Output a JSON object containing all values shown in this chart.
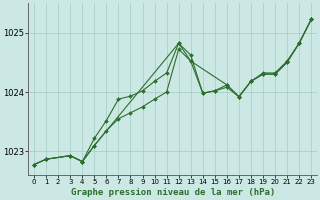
{
  "title": "Graphe pression niveau de la mer (hPa)",
  "bg_color": "#cce8e4",
  "grid_color": "#aad0cc",
  "line_color": "#2d6e2d",
  "x_ticks": [
    0,
    1,
    2,
    3,
    4,
    5,
    6,
    7,
    8,
    9,
    10,
    11,
    12,
    13,
    14,
    15,
    16,
    17,
    18,
    19,
    20,
    21,
    22,
    23
  ],
  "y_ticks": [
    1023,
    1024,
    1025
  ],
  "ylim": [
    1022.6,
    1025.5
  ],
  "xlim": [
    -0.5,
    23.5
  ],
  "series1_x": [
    0,
    1,
    3,
    4,
    5,
    6,
    7,
    8,
    9,
    10,
    11,
    12,
    13,
    14,
    15,
    16,
    17,
    18,
    19,
    20,
    21,
    22,
    23
  ],
  "series1_y": [
    1022.78,
    1022.87,
    1022.93,
    1022.83,
    1023.22,
    1023.52,
    1023.88,
    1023.93,
    1024.02,
    1024.18,
    1024.32,
    1024.82,
    1024.62,
    1023.98,
    1024.02,
    1024.12,
    1023.92,
    1024.18,
    1024.32,
    1024.32,
    1024.52,
    1024.82,
    1025.22
  ],
  "series2_x": [
    0,
    1,
    3,
    4,
    5,
    6,
    7,
    8,
    9,
    10,
    11,
    12,
    13,
    14,
    15,
    16,
    17,
    18,
    19,
    20,
    21,
    22,
    23
  ],
  "series2_y": [
    1022.78,
    1022.87,
    1022.93,
    1022.83,
    1023.1,
    1023.35,
    1023.55,
    1023.65,
    1023.75,
    1023.88,
    1024.0,
    1024.72,
    1024.52,
    1023.98,
    1024.02,
    1024.08,
    1023.92,
    1024.18,
    1024.3,
    1024.3,
    1024.5,
    1024.82,
    1025.22
  ],
  "series3_x": [
    0,
    1,
    3,
    4,
    5,
    12,
    13,
    16,
    17,
    18,
    19,
    20,
    21,
    22,
    23
  ],
  "series3_y": [
    1022.78,
    1022.87,
    1022.93,
    1022.83,
    1023.1,
    1024.82,
    1024.52,
    1024.12,
    1023.92,
    1024.18,
    1024.3,
    1024.3,
    1024.5,
    1024.82,
    1025.22
  ]
}
